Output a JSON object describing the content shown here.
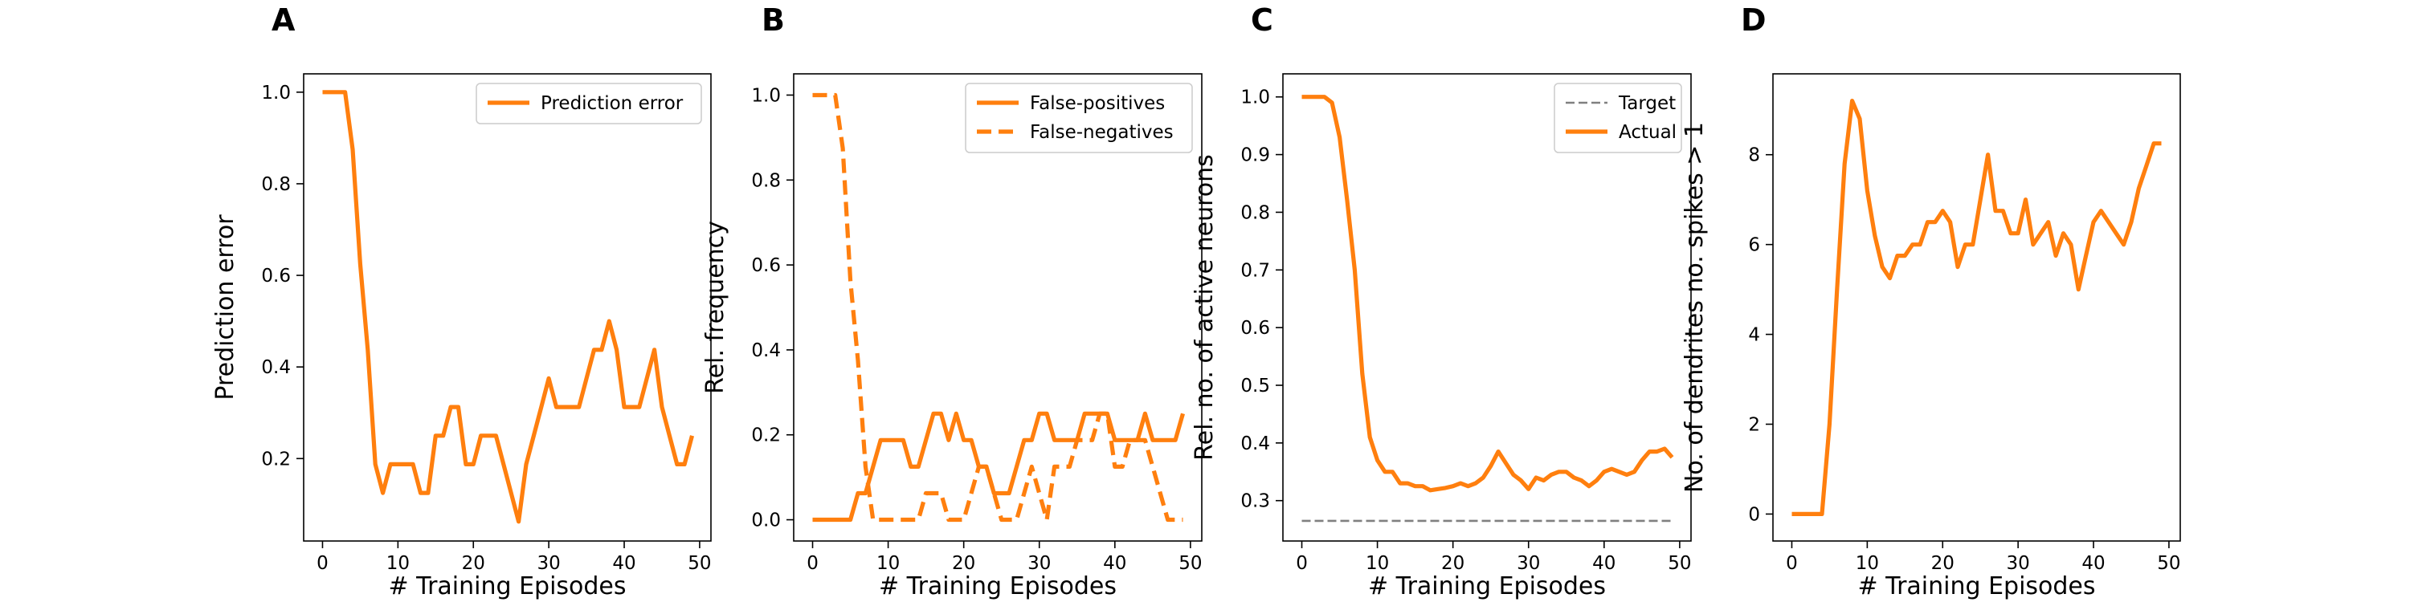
{
  "chart_data": [
    {
      "type": "line",
      "panel_label": "A",
      "xlabel": "# Training Episodes",
      "ylabel": "Prediction error",
      "xlim": [
        -2.5,
        51.5
      ],
      "ylim": [
        0.02,
        1.04
      ],
      "xticks": [
        0,
        10,
        20,
        30,
        40,
        50
      ],
      "yticks": [
        0.2,
        0.4,
        0.6,
        0.8,
        1.0
      ],
      "ytick_labels": [
        "0.2",
        "0.4",
        "0.6",
        "0.8",
        "1.0"
      ],
      "grid": false,
      "legend_position": "top-right",
      "series": [
        {
          "name": "Prediction error",
          "color": "#ff7f0e",
          "style": "solid",
          "x": [
            0,
            1,
            2,
            3,
            4,
            5,
            6,
            7,
            8,
            9,
            10,
            11,
            12,
            13,
            14,
            15,
            16,
            17,
            18,
            19,
            20,
            21,
            22,
            23,
            24,
            25,
            26,
            27,
            28,
            29,
            30,
            31,
            32,
            33,
            34,
            35,
            36,
            37,
            38,
            39,
            40,
            41,
            42,
            43,
            44,
            45,
            46,
            47,
            48,
            49
          ],
          "y": [
            1.0,
            1.0,
            1.0,
            1.0,
            0.875,
            0.625,
            0.4375,
            0.1875,
            0.125,
            0.1875,
            0.1875,
            0.1875,
            0.1875,
            0.125,
            0.125,
            0.25,
            0.25,
            0.3125,
            0.3125,
            0.1875,
            0.1875,
            0.25,
            0.25,
            0.25,
            0.1875,
            0.125,
            0.0625,
            0.1875,
            0.25,
            0.3125,
            0.375,
            0.3125,
            0.3125,
            0.3125,
            0.3125,
            0.375,
            0.4375,
            0.4375,
            0.5,
            0.4375,
            0.3125,
            0.3125,
            0.3125,
            0.375,
            0.4375,
            0.3125,
            0.25,
            0.1875,
            0.1875,
            0.25
          ]
        }
      ]
    },
    {
      "type": "line",
      "panel_label": "B",
      "xlabel": "# Training Episodes",
      "ylabel": "Rel. frequency",
      "xlim": [
        -2.5,
        51.5
      ],
      "ylim": [
        -0.05,
        1.05
      ],
      "xticks": [
        0,
        10,
        20,
        30,
        40,
        50
      ],
      "yticks": [
        0.0,
        0.2,
        0.4,
        0.6,
        0.8,
        1.0
      ],
      "ytick_labels": [
        "0.0",
        "0.2",
        "0.4",
        "0.6",
        "0.8",
        "1.0"
      ],
      "grid": false,
      "legend_position": "top-right",
      "series": [
        {
          "name": "False-positives",
          "color": "#ff7f0e",
          "style": "solid",
          "x": [
            0,
            1,
            2,
            3,
            4,
            5,
            6,
            7,
            8,
            9,
            10,
            11,
            12,
            13,
            14,
            15,
            16,
            17,
            18,
            19,
            20,
            21,
            22,
            23,
            24,
            25,
            26,
            27,
            28,
            29,
            30,
            31,
            32,
            33,
            34,
            35,
            36,
            37,
            38,
            39,
            40,
            41,
            42,
            43,
            44,
            45,
            46,
            47,
            48,
            49
          ],
          "y": [
            0,
            0,
            0,
            0,
            0,
            0,
            0.0625,
            0.0625,
            0.125,
            0.1875,
            0.1875,
            0.1875,
            0.1875,
            0.125,
            0.125,
            0.1875,
            0.25,
            0.25,
            0.1875,
            0.25,
            0.1875,
            0.1875,
            0.125,
            0.125,
            0.0625,
            0.0625,
            0.0625,
            0.125,
            0.1875,
            0.1875,
            0.25,
            0.25,
            0.1875,
            0.1875,
            0.1875,
            0.1875,
            0.25,
            0.25,
            0.25,
            0.25,
            0.1875,
            0.1875,
            0.1875,
            0.1875,
            0.25,
            0.1875,
            0.1875,
            0.1875,
            0.1875,
            0.25
          ]
        },
        {
          "name": "False-negatives",
          "color": "#ff7f0e",
          "style": "dashed",
          "x": [
            0,
            1,
            2,
            3,
            4,
            5,
            6,
            7,
            8,
            9,
            10,
            11,
            12,
            13,
            14,
            15,
            16,
            17,
            18,
            19,
            20,
            21,
            22,
            23,
            24,
            25,
            26,
            27,
            28,
            29,
            30,
            31,
            32,
            33,
            34,
            35,
            36,
            37,
            38,
            39,
            40,
            41,
            42,
            43,
            44,
            45,
            46,
            47,
            48,
            49
          ],
          "y": [
            1.0,
            1.0,
            1.0,
            1.0,
            0.875,
            0.5625,
            0.375,
            0.125,
            0.0,
            0.0,
            0.0,
            0.0,
            0.0,
            0.0,
            0.0,
            0.0625,
            0.0625,
            0.0625,
            0.0,
            0.0,
            0.0,
            0.0625,
            0.125,
            0.125,
            0.0625,
            0.0,
            0.0,
            0.0,
            0.0625,
            0.125,
            0.0625,
            0.0,
            0.125,
            0.125,
            0.125,
            0.1875,
            0.1875,
            0.1875,
            0.25,
            0.25,
            0.125,
            0.125,
            0.1875,
            0.1875,
            0.1875,
            0.125,
            0.0625,
            0.0,
            0.0,
            0.0
          ]
        }
      ]
    },
    {
      "type": "line",
      "panel_label": "C",
      "xlabel": "# Training Episodes",
      "ylabel": "Rel. no. of active neurons",
      "xlim": [
        -2.5,
        51.5
      ],
      "ylim": [
        0.23,
        1.04
      ],
      "xticks": [
        0,
        10,
        20,
        30,
        40,
        50
      ],
      "yticks": [
        0.3,
        0.4,
        0.5,
        0.6,
        0.7,
        0.8,
        0.9,
        1.0
      ],
      "ytick_labels": [
        "0.3",
        "0.4",
        "0.5",
        "0.6",
        "0.7",
        "0.8",
        "0.9",
        "1.0"
      ],
      "grid": false,
      "legend_position": "top-right",
      "series": [
        {
          "name": "Target",
          "color": "#808080",
          "style": "dashed-thin",
          "x": [
            0,
            49
          ],
          "y": [
            0.265,
            0.265
          ]
        },
        {
          "name": "Actual",
          "color": "#ff7f0e",
          "style": "solid",
          "x": [
            0,
            1,
            2,
            3,
            4,
            5,
            6,
            7,
            8,
            9,
            10,
            11,
            12,
            13,
            14,
            15,
            16,
            17,
            18,
            19,
            20,
            21,
            22,
            23,
            24,
            25,
            26,
            27,
            28,
            29,
            30,
            31,
            32,
            33,
            34,
            35,
            36,
            37,
            38,
            39,
            40,
            41,
            42,
            43,
            44,
            45,
            46,
            47,
            48,
            49
          ],
          "y": [
            1.0,
            1.0,
            1.0,
            1.0,
            0.99,
            0.93,
            0.82,
            0.7,
            0.52,
            0.41,
            0.37,
            0.35,
            0.35,
            0.33,
            0.33,
            0.325,
            0.325,
            0.318,
            0.32,
            0.322,
            0.325,
            0.33,
            0.325,
            0.33,
            0.34,
            0.36,
            0.385,
            0.365,
            0.345,
            0.335,
            0.32,
            0.34,
            0.335,
            0.345,
            0.35,
            0.35,
            0.34,
            0.335,
            0.325,
            0.335,
            0.35,
            0.355,
            0.35,
            0.345,
            0.35,
            0.37,
            0.385,
            0.385,
            0.39,
            0.375
          ]
        }
      ]
    },
    {
      "type": "line",
      "panel_label": "D",
      "xlabel": "# Training Episodes",
      "ylabel": "No. of dendrites no. spikes > 1",
      "xlim": [
        -2.5,
        51.5
      ],
      "ylim": [
        -0.6,
        9.8
      ],
      "xticks": [
        0,
        10,
        20,
        30,
        40,
        50
      ],
      "yticks": [
        0,
        2,
        4,
        6,
        8
      ],
      "ytick_labels": [
        "0",
        "2",
        "4",
        "6",
        "8"
      ],
      "grid": false,
      "series": [
        {
          "color": "#ff7f0e",
          "style": "solid",
          "x": [
            0,
            1,
            2,
            3,
            4,
            5,
            6,
            7,
            8,
            9,
            10,
            11,
            12,
            13,
            14,
            15,
            16,
            17,
            18,
            19,
            20,
            21,
            22,
            23,
            24,
            25,
            26,
            27,
            28,
            29,
            30,
            31,
            32,
            33,
            34,
            35,
            36,
            37,
            38,
            39,
            40,
            41,
            42,
            43,
            44,
            45,
            46,
            47,
            48,
            49
          ],
          "y": [
            0,
            0,
            0,
            0,
            0,
            2.0,
            5.0,
            7.8,
            9.2,
            8.8,
            7.2,
            6.2,
            5.5,
            5.25,
            5.75,
            5.75,
            6.0,
            6.0,
            6.5,
            6.5,
            6.75,
            6.5,
            5.5,
            6.0,
            6.0,
            7.0,
            8.0,
            6.75,
            6.75,
            6.25,
            6.25,
            7.0,
            6.0,
            6.25,
            6.5,
            5.75,
            6.25,
            6.0,
            5.0,
            5.75,
            6.5,
            6.75,
            6.5,
            6.25,
            6.0,
            6.5,
            7.25,
            7.75,
            8.25,
            8.25
          ]
        }
      ]
    }
  ]
}
